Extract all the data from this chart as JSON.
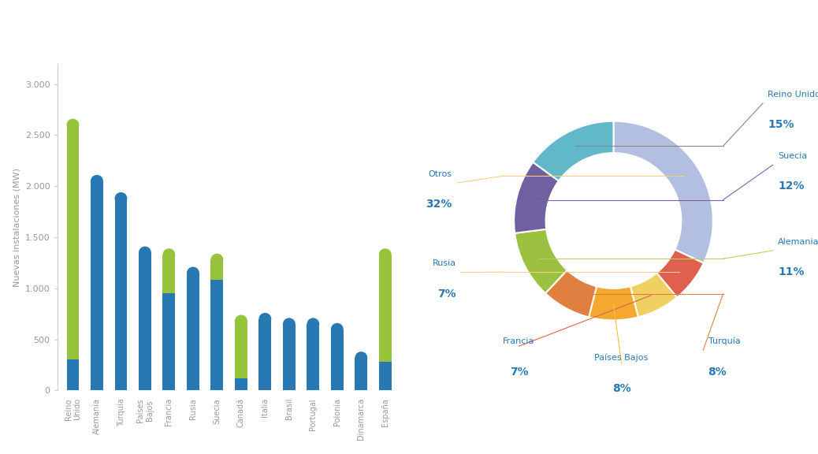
{
  "bar_categories": [
    "Reino\nUnido",
    "Alemania",
    "Turquía",
    "Países\nBajos",
    "Francia",
    "Rusia",
    "Suecia",
    "Canadá",
    "Italia",
    "Brasil",
    "Portugal",
    "Polonia",
    "Dinamarca",
    "España"
  ],
  "bar_blue": [
    300,
    2050,
    1880,
    1350,
    950,
    1150,
    1080,
    120,
    700,
    650,
    650,
    600,
    320,
    280
  ],
  "bar_green": [
    2300,
    0,
    0,
    0,
    380,
    0,
    200,
    560,
    0,
    0,
    0,
    0,
    0,
    1050
  ],
  "ylabel": "Nuevas instalaciones (MW)",
  "yticks": [
    0,
    500,
    1000,
    1500,
    2000,
    2500,
    3000
  ],
  "pie_labels": [
    "Otros",
    "Rusia",
    "Francia",
    "Países Bajos",
    "Turquía",
    "Alemania",
    "Suecia",
    "Reino Unido"
  ],
  "pie_values": [
    32,
    7,
    7,
    8,
    8,
    11,
    12,
    15
  ],
  "pie_colors": [
    "#b3bfe0",
    "#e06050",
    "#f0d060",
    "#f5a830",
    "#e08040",
    "#9cc040",
    "#7060a0",
    "#60b8c8"
  ],
  "bar_color_blue": "#2878b4",
  "bar_color_green": "#96c23c",
  "background_color": "#ffffff",
  "axis_color": "#cccccc",
  "tick_color": "#999999",
  "text_color": "#2878b4"
}
